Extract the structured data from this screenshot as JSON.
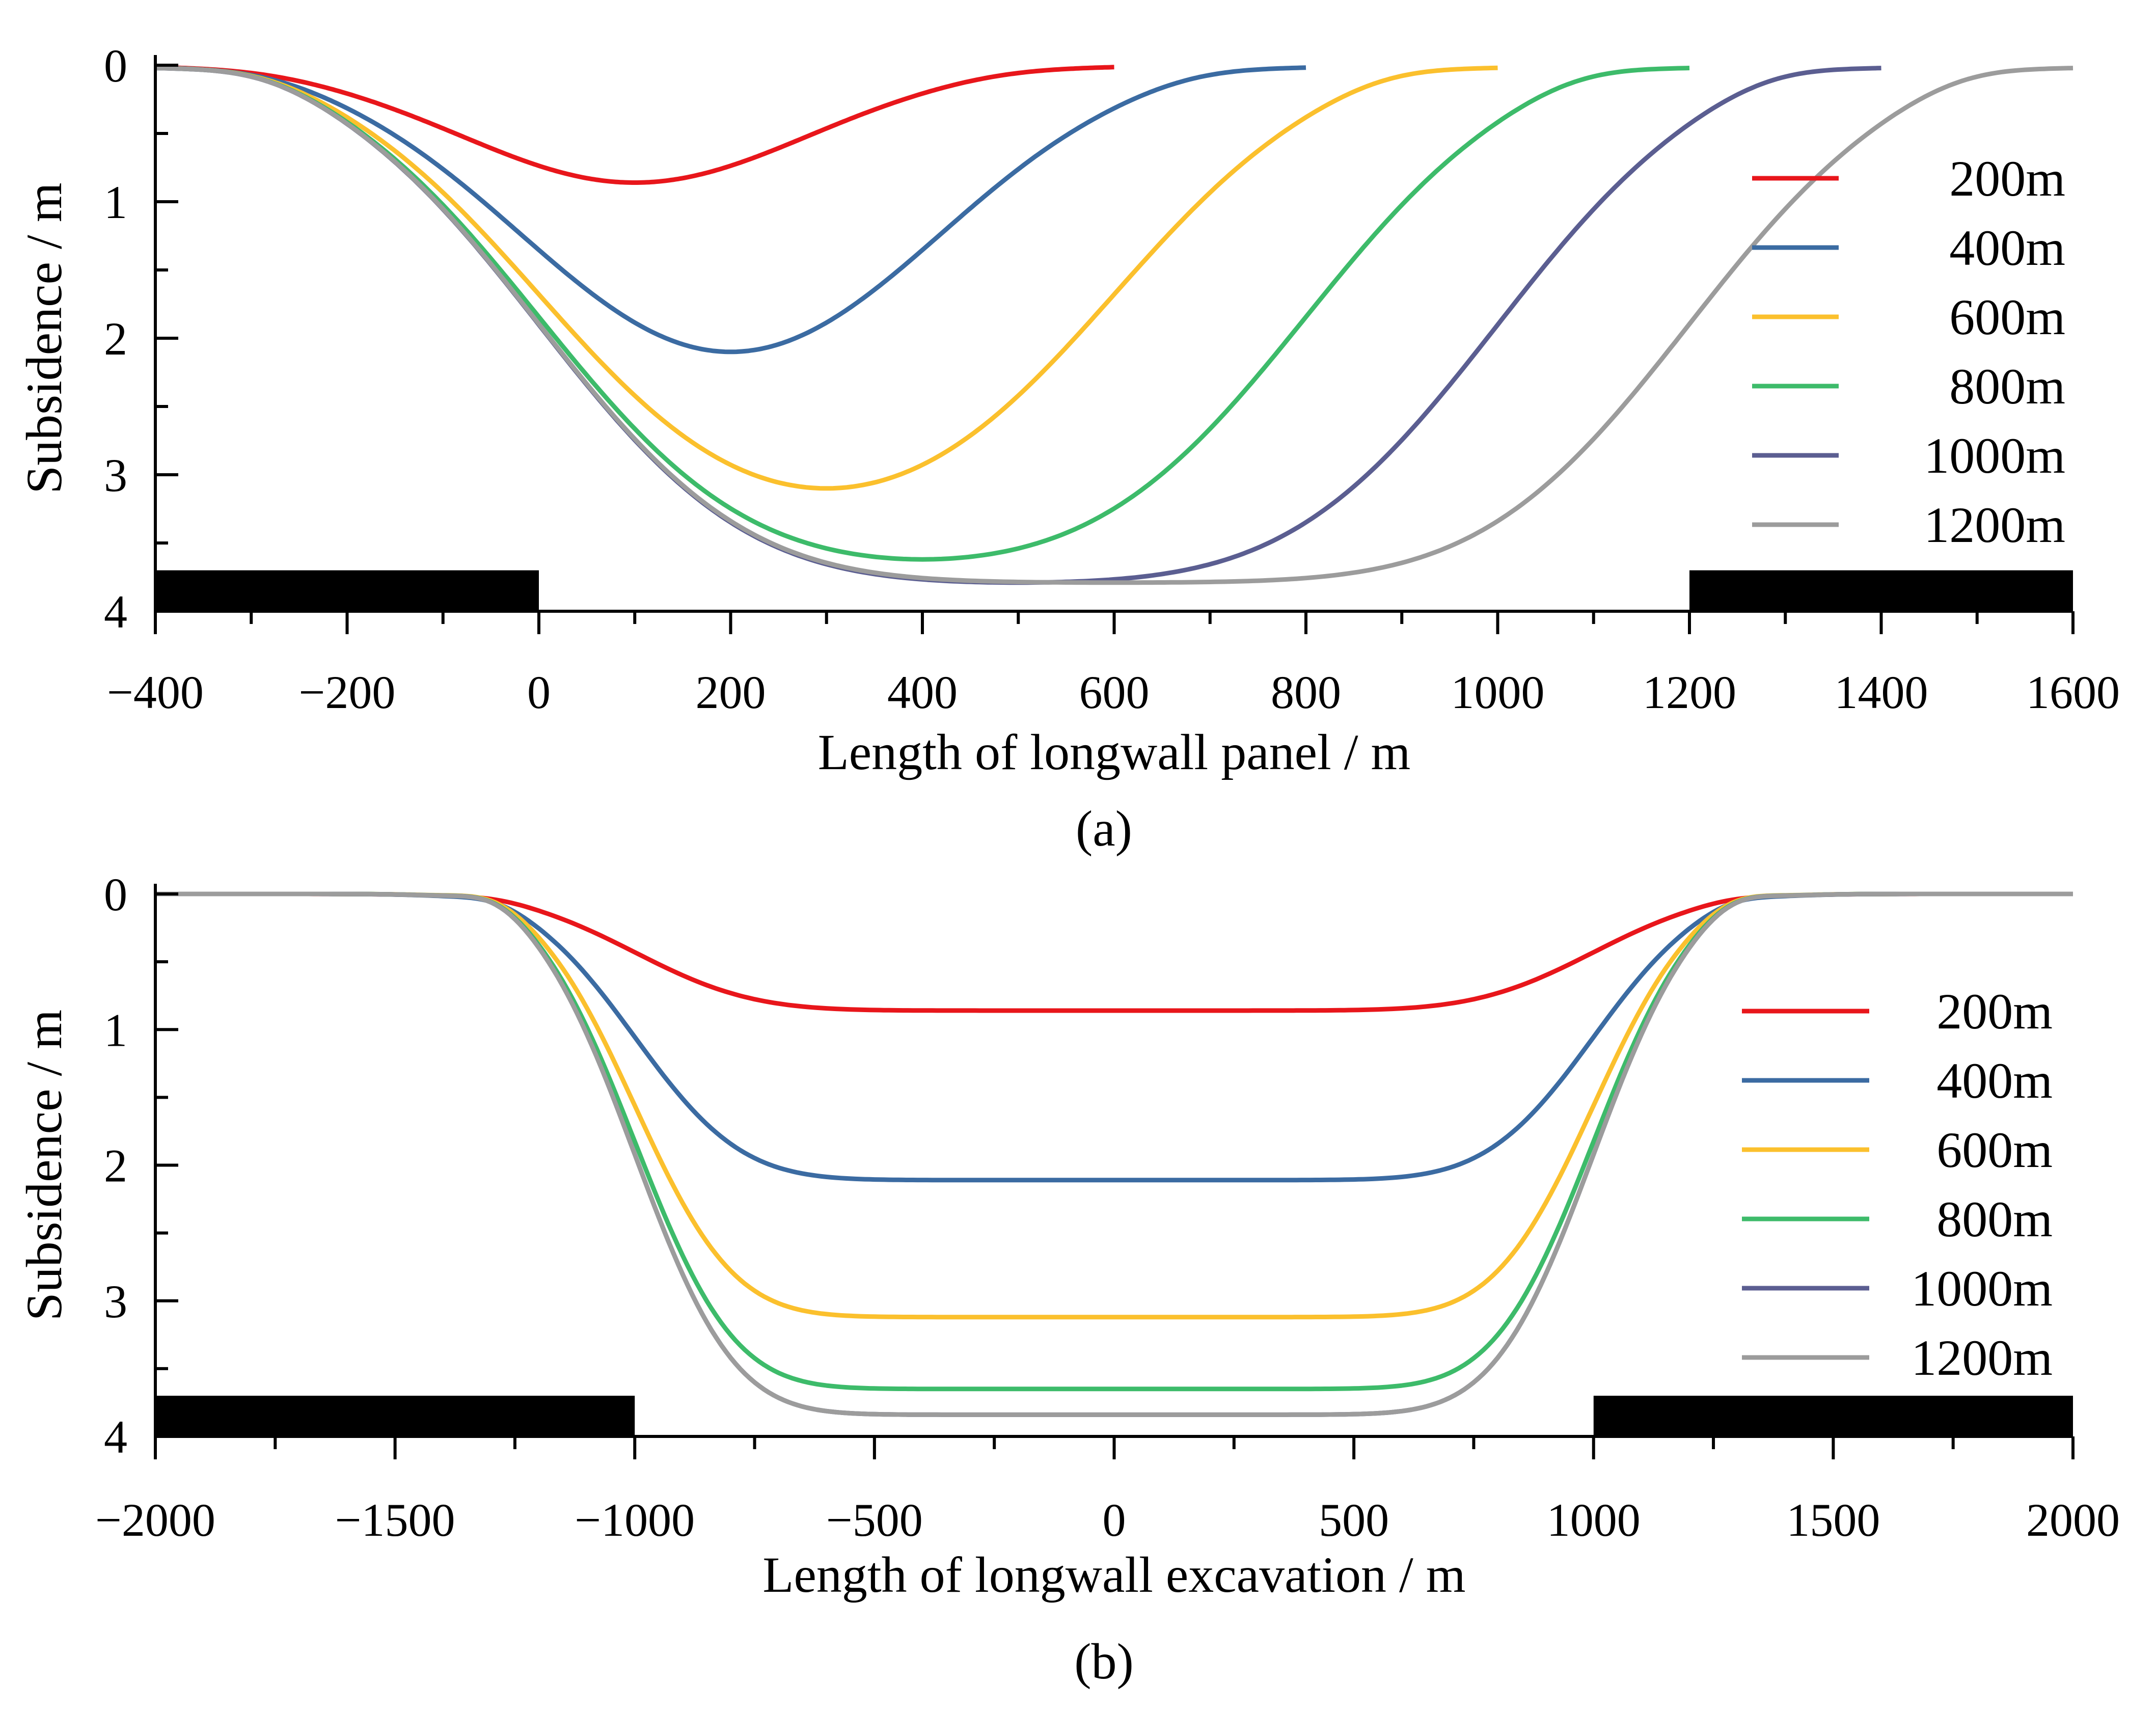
{
  "chart_data": [
    {
      "type": "line",
      "caption": "(a)",
      "xlabel": "Length of longwall panel / m",
      "ylabel": "Subsidence / m",
      "xlim": [
        -400,
        1600
      ],
      "ylim": [
        0,
        4
      ],
      "y_inverted": true,
      "xticks": [
        -400,
        -200,
        0,
        200,
        400,
        600,
        800,
        1000,
        1200,
        1400,
        1600
      ],
      "xtick_labels": [
        "−400",
        "−200",
        "0",
        "200",
        "400",
        "600",
        "800",
        "1000",
        "1200",
        "1400",
        "1600"
      ],
      "yticks": [
        0,
        1,
        2,
        3,
        4
      ],
      "ytick_labels": [
        "0",
        "1",
        "2",
        "3",
        "4"
      ],
      "legend_position": "right",
      "pillars": [
        {
          "x0": -400,
          "x1": 0,
          "y0": 3.7,
          "y1": 4.0
        },
        {
          "x0": 1200,
          "x1": 1600,
          "y0": 3.7,
          "y1": 4.0
        }
      ],
      "series": [
        {
          "name": "200m",
          "color": "#e8161b",
          "start": 0,
          "end": 200,
          "max": 0.86,
          "x0": -400,
          "x1": 600
        },
        {
          "name": "400m",
          "color": "#3b6ba2",
          "start": 0,
          "end": 400,
          "max": 2.1,
          "x0": -400,
          "x1": 800
        },
        {
          "name": "600m",
          "color": "#fbc02d",
          "start": 0,
          "end": 600,
          "max": 3.1,
          "x0": -400,
          "x1": 1000
        },
        {
          "name": "800m",
          "color": "#3dbb6a",
          "start": 0,
          "end": 800,
          "max": 3.62,
          "x0": -400,
          "x1": 1200
        },
        {
          "name": "1000m",
          "color": "#5b5e91",
          "start": 0,
          "end": 1000,
          "max": 3.79,
          "x0": -400,
          "x1": 1400
        },
        {
          "name": "1200m",
          "color": "#9c9c9c",
          "start": 0,
          "end": 1200,
          "max": 3.79,
          "x0": -400,
          "x1": 1600
        }
      ]
    },
    {
      "type": "line",
      "caption": "(b)",
      "xlabel": "Length of longwall excavation / m",
      "ylabel": "Subsidence / m",
      "xlim": [
        -2000,
        2000
      ],
      "ylim": [
        0,
        4
      ],
      "y_inverted": true,
      "xticks": [
        -2000,
        -1500,
        -1000,
        -500,
        0,
        500,
        1000,
        1500,
        2000
      ],
      "xtick_labels": [
        "−2000",
        "−1500",
        "−1000",
        "−500",
        "0",
        "500",
        "1000",
        "1500",
        "2000"
      ],
      "yticks": [
        0,
        1,
        2,
        3,
        4
      ],
      "ytick_labels": [
        "0",
        "1",
        "2",
        "3",
        "4"
      ],
      "legend_position": "right",
      "pillars": [
        {
          "x0": -2000,
          "x1": -1000,
          "y0": 3.7,
          "y1": 4.0
        },
        {
          "x0": 1000,
          "x1": 2000,
          "y0": 3.7,
          "y1": 4.0
        }
      ],
      "series": [
        {
          "name": "200m",
          "color": "#e8161b",
          "max": 0.86,
          "x0": -2000,
          "x1": 2000
        },
        {
          "name": "400m",
          "color": "#3b6ba2",
          "max": 2.11,
          "x0": -2000,
          "x1": 2000
        },
        {
          "name": "600m",
          "color": "#fbc02d",
          "max": 3.12,
          "x0": -2000,
          "x1": 2000
        },
        {
          "name": "800m",
          "color": "#3dbb6a",
          "max": 3.65,
          "x0": -2000,
          "x1": 2000
        },
        {
          "name": "1000m",
          "color": "#5b5e91",
          "max": 3.84,
          "x0": -2000,
          "x1": 2000
        },
        {
          "name": "1200m",
          "color": "#9c9c9c",
          "max": 3.84,
          "x0": -2000,
          "x1": 2000
        }
      ]
    }
  ]
}
